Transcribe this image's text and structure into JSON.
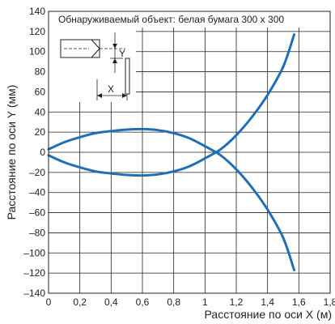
{
  "chart_data": {
    "type": "line",
    "title": "",
    "annotation": "Обнаруживаемый объект: белая бумага 300 x 300",
    "xlabel": "Расстояние по оси X (м)",
    "ylabel": "Расстояние по оси Y (мм)",
    "xlim": [
      0,
      1.8
    ],
    "ylim": [
      -140,
      140
    ],
    "xticks": [
      "0",
      "0,2",
      "0,4",
      "0,6",
      "0,8",
      "1",
      "1,2",
      "1,4",
      "1,6",
      "1,8"
    ],
    "yticks": [
      "140",
      "120",
      "100",
      "80",
      "60",
      "40",
      "20",
      "0",
      "–20",
      "–40",
      "–60",
      "–80",
      "–100",
      "–120",
      "–140"
    ],
    "grid": true,
    "series_color": "#1f6fb6",
    "inset": {
      "y_label": "Y",
      "x_label": "X"
    },
    "series": [
      {
        "x": [
          0.0,
          0.1,
          0.2,
          0.3,
          0.4,
          0.5,
          0.6,
          0.7,
          0.8,
          0.9,
          1.0,
          1.1,
          1.2,
          1.3,
          1.4,
          1.5,
          1.57
        ],
        "y": [
          3,
          10,
          15,
          19,
          21,
          22.5,
          23,
          22,
          19,
          14,
          6,
          -3,
          -17,
          -35,
          -57,
          -85,
          -117
        ]
      },
      {
        "x": [
          0.0,
          0.1,
          0.2,
          0.3,
          0.4,
          0.5,
          0.6,
          0.7,
          0.8,
          0.9,
          1.0,
          1.1,
          1.2,
          1.3,
          1.4,
          1.5,
          1.57
        ],
        "y": [
          -3,
          -10,
          -15,
          -19,
          -21,
          -22.5,
          -23,
          -22,
          -19,
          -14,
          -6,
          3,
          17,
          35,
          57,
          85,
          117
        ]
      }
    ]
  }
}
